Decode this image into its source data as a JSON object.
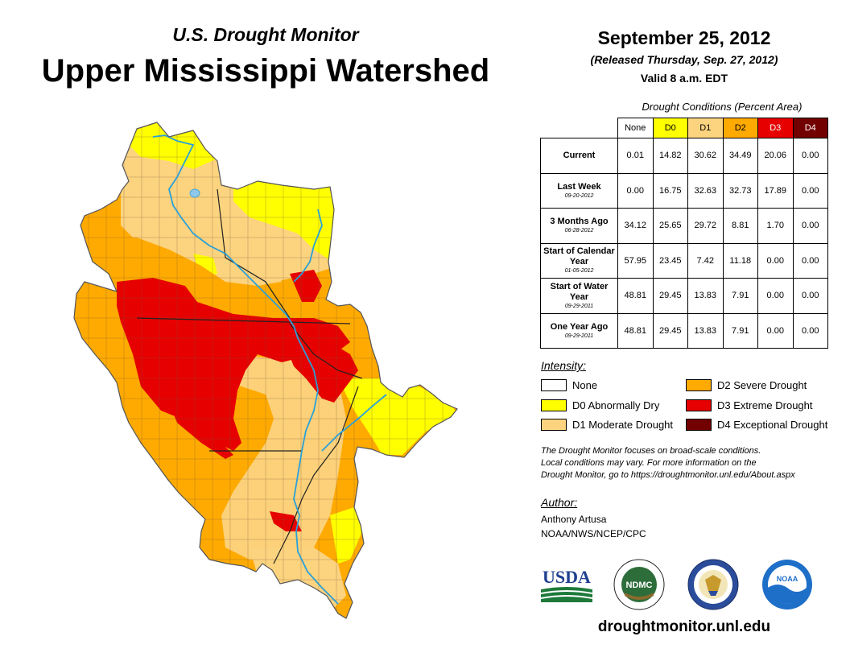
{
  "header": {
    "subtitle": "U.S. Drought Monitor",
    "title": "Upper Mississippi Watershed"
  },
  "release": {
    "date": "September 25, 2012",
    "released": "(Released Thursday, Sep. 27, 2012)",
    "valid": "Valid 8 a.m. EDT"
  },
  "table": {
    "caption": "Drought Conditions (Percent Area)",
    "columns": [
      "None",
      "D0",
      "D1",
      "D2",
      "D3",
      "D4"
    ],
    "rows": [
      {
        "label": "Current",
        "date": "",
        "values": [
          "0.01",
          "14.82",
          "30.62",
          "34.49",
          "20.06",
          "0.00"
        ]
      },
      {
        "label": "Last Week",
        "date": "09-20-2012",
        "values": [
          "0.00",
          "16.75",
          "32.63",
          "32.73",
          "17.89",
          "0.00"
        ]
      },
      {
        "label": "3 Months Ago",
        "date": "06-28-2012",
        "values": [
          "34.12",
          "25.65",
          "29.72",
          "8.81",
          "1.70",
          "0.00"
        ]
      },
      {
        "label": "Start of Calendar Year",
        "date": "01-05-2012",
        "values": [
          "57.95",
          "23.45",
          "7.42",
          "11.18",
          "0.00",
          "0.00"
        ]
      },
      {
        "label": "Start of Water Year",
        "date": "09-29-2011",
        "values": [
          "48.81",
          "29.45",
          "13.83",
          "7.91",
          "0.00",
          "0.00"
        ]
      },
      {
        "label": "One Year Ago",
        "date": "09-29-2011",
        "values": [
          "48.81",
          "29.45",
          "13.83",
          "7.91",
          "0.00",
          "0.00"
        ]
      }
    ]
  },
  "legend": {
    "title": "Intensity:",
    "items": [
      {
        "label": "None",
        "color": "#ffffff"
      },
      {
        "label": "D0 Abnormally Dry",
        "color": "#ffff00"
      },
      {
        "label": "D1 Moderate Drought",
        "color": "#fcd37f"
      },
      {
        "label": "D2 Severe Drought",
        "color": "#ffaa00"
      },
      {
        "label": "D3 Extreme Drought",
        "color": "#e60000"
      },
      {
        "label": "D4 Exceptional Drought",
        "color": "#730000"
      }
    ]
  },
  "note": {
    "line1": "The Drought Monitor focuses on broad-scale conditions.",
    "line2": "Local conditions may vary. For more information on the",
    "line3": "Drought Monitor, go to https://droughtmonitor.unl.edu/About.aspx"
  },
  "author": {
    "title": "Author:",
    "name": "Anthony Artusa",
    "org": "NOAA/NWS/NCEP/CPC"
  },
  "logos": {
    "usda": "USDA",
    "ndmc": "NDMC",
    "noaa": "NOAA",
    "usda_icon": "usda-logo-icon",
    "ndmc_icon": "ndmc-seal-icon",
    "commerce_icon": "dept-commerce-seal-icon",
    "noaa_icon": "noaa-logo-icon"
  },
  "footer": {
    "website": "droughtmonitor.unl.edu"
  }
}
